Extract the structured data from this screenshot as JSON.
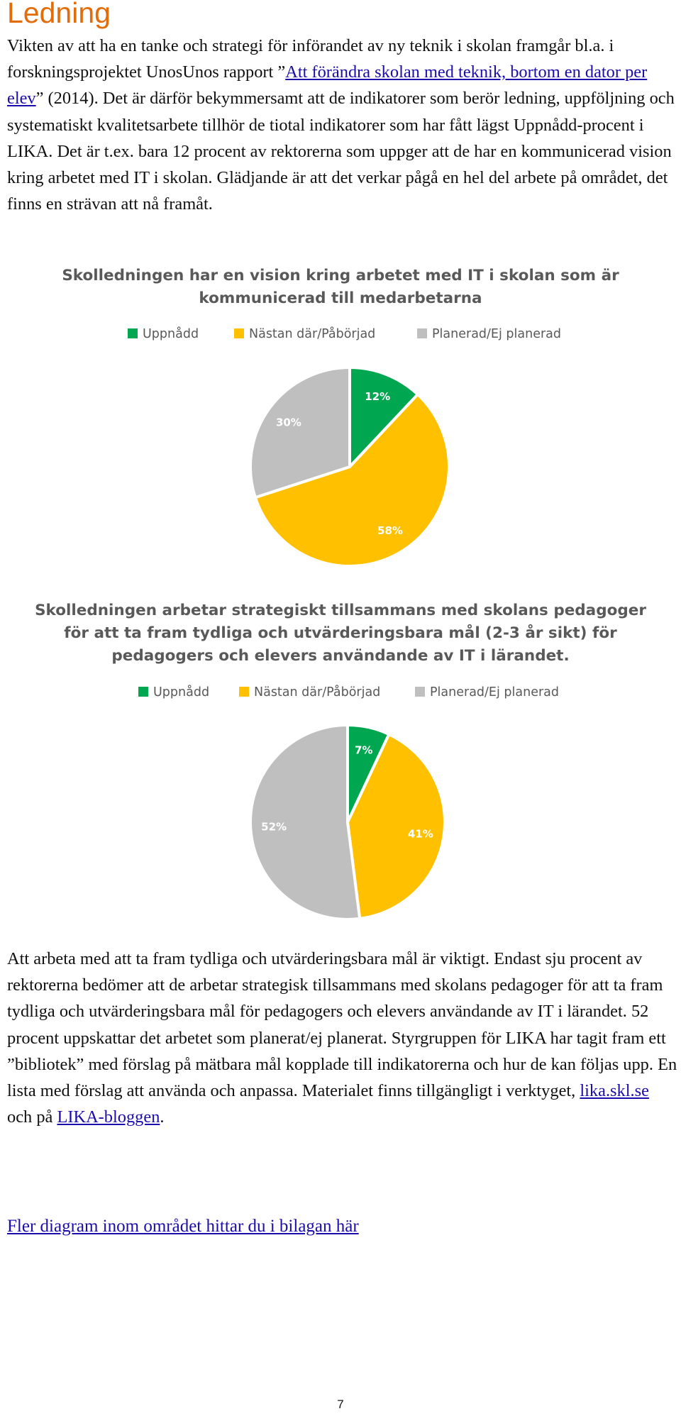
{
  "heading": "Ledning",
  "para1": {
    "before_link": "Vikten av att ha en tanke och strategi för införandet av ny teknik i skolan framgår bl.a. i forskningsprojektet UnosUnos rapport ”",
    "link": "Att förändra skolan med teknik, bortom en dator per elev",
    "after_link": "” (2014). Det är därför bekymmersamt att de indikatorer som berör ledning, uppföljning och systematiskt kvalitetsarbete tillhör de tiotal indikatorer som har fått lägst Uppnådd-procent i LIKA. Det är t.ex. bara 12 procent av rektorerna som uppger att de har en kommunicerad vision kring arbetet med IT i skolan. Glädjande är att det verkar pågå en hel del arbete på området, det finns en strävan att nå framåt."
  },
  "colors": {
    "green": "#00a650",
    "yellow": "#ffc000",
    "gray": "#bfbfbf",
    "heading": "#e36c0a",
    "link": "#1a0dab"
  },
  "chart_data": [
    {
      "type": "pie",
      "title": [
        "Skolledningen har en vision kring arbetet med IT i skolan som är",
        "kommunicerad till medarbetarna"
      ],
      "legend": [
        "Uppnådd",
        "Nästan där/Påbörjad",
        "Planerad/Ej planerad"
      ],
      "legend_position": "top",
      "values": [
        12,
        58,
        30
      ],
      "labels": [
        "12%",
        "58%",
        "30%"
      ]
    },
    {
      "type": "pie",
      "title": [
        "Skolledningen arbetar strategiskt tillsammans med skolans pedagoger",
        "för att ta fram tydliga och utvärderingsbara mål (2-3 år sikt) för",
        "pedagogers och elevers användande av IT i lärandet."
      ],
      "legend": [
        "Uppnådd",
        "Nästan där/Påbörjad",
        "Planerad/Ej planerad"
      ],
      "legend_position": "top",
      "values": [
        7,
        41,
        52
      ],
      "labels": [
        "7%",
        "41%",
        "52%"
      ]
    }
  ],
  "para2": {
    "text": "Att arbeta med att ta fram tydliga och utvärderingsbara mål är viktigt. Endast sju procent av rektorerna bedömer att de arbetar strategisk tillsammans med skolans pedagoger för att ta fram tydliga och utvärderingsbara mål för pedagogers och elevers användande av IT i lärandet. 52 procent uppskattar det arbetet som planerat/ej planerat. Styrgruppen för LIKA har tagit fram ett ”bibliotek” med förslag på mätbara mål kopplade till indikatorerna och hur de kan följas upp. En lista med förslag att använda och anpassa. Materialet finns tillgängligt i verktyget, ",
    "link1": "lika.skl.se",
    "middle": " och på ",
    "link2": "LIKA-bloggen",
    "end": "."
  },
  "more_link": "Fler diagram inom området hittar du i bilagan här",
  "page_number": "7"
}
